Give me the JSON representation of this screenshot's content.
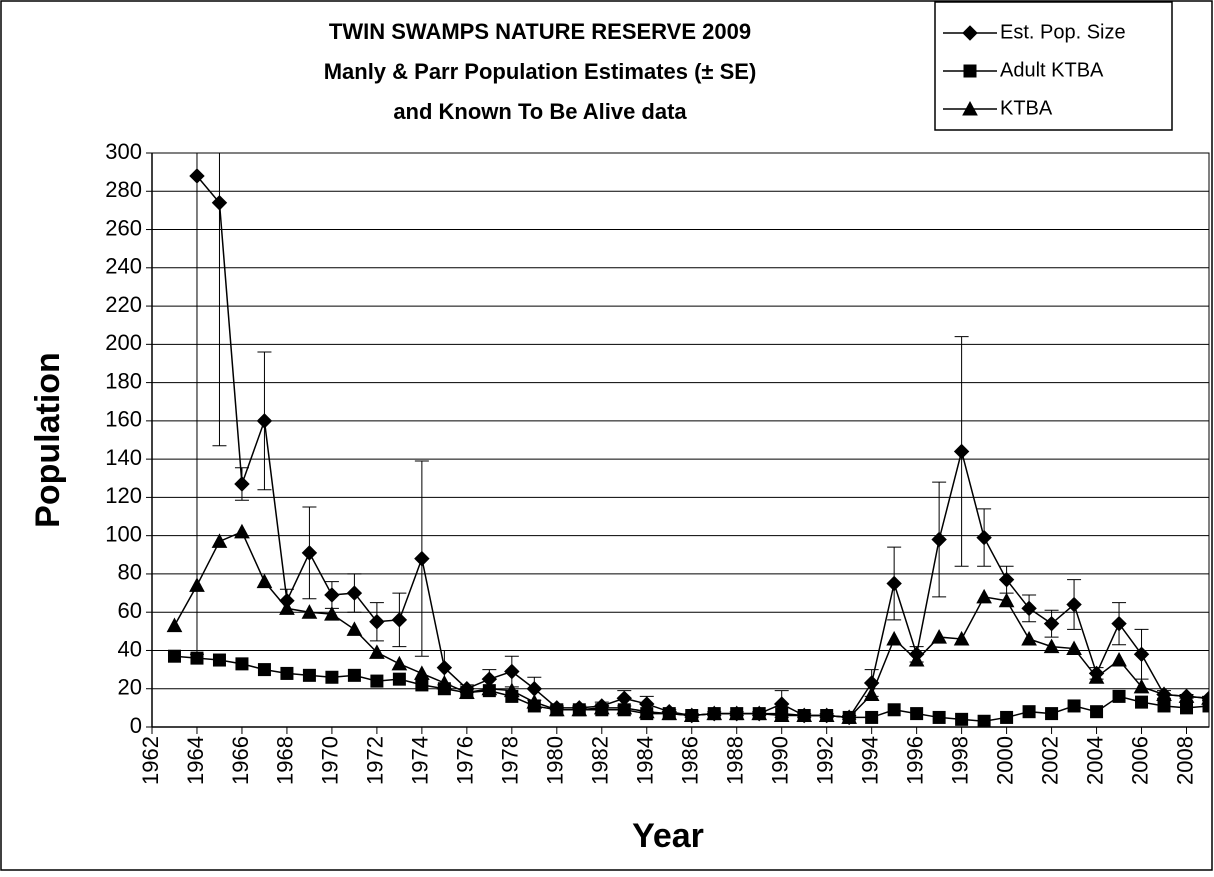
{
  "chart_data": {
    "type": "line",
    "title": [
      "TWIN SWAMPS NATURE RESERVE 2009",
      "Manly & Parr Population Estimates (± SE)",
      "and Known To Be Alive data"
    ],
    "x_label": "Year",
    "y_label": "Population",
    "x": [
      1963,
      1964,
      1965,
      1966,
      1967,
      1968,
      1969,
      1970,
      1971,
      1972,
      1973,
      1974,
      1975,
      1976,
      1977,
      1978,
      1979,
      1980,
      1981,
      1982,
      1983,
      1984,
      1985,
      1986,
      1987,
      1988,
      1989,
      1990,
      1991,
      1992,
      1993,
      1994,
      1995,
      1996,
      1997,
      1998,
      1999,
      2000,
      2001,
      2002,
      2003,
      2004,
      2005,
      2006,
      2007,
      2008,
      2009
    ],
    "series": [
      {
        "name": "Est. Pop. Size",
        "color": "#000000",
        "marker": "diamond",
        "values": [
          null,
          288,
          274,
          127,
          160,
          66,
          91,
          69,
          70,
          55,
          56,
          88,
          31,
          20,
          25,
          29,
          20,
          10,
          10,
          11,
          15,
          12,
          8,
          6,
          7,
          7,
          7,
          12,
          6,
          6,
          5,
          23,
          75,
          38,
          98,
          144,
          99,
          77,
          62,
          54,
          64,
          28,
          54,
          38,
          17,
          16,
          15
        ],
        "errors": [
          null,
          250,
          127,
          8.5,
          36,
          6,
          24,
          7,
          10,
          10,
          14,
          51,
          9,
          2,
          5,
          8,
          6,
          1,
          1,
          2,
          4,
          4,
          1,
          1,
          1,
          1,
          1,
          7,
          1,
          1,
          1,
          7,
          19,
          4,
          30,
          60,
          15,
          7,
          7,
          7,
          13,
          3,
          11,
          13,
          2,
          1,
          1
        ]
      },
      {
        "name": "Adult KTBA",
        "color": "#000000",
        "marker": "square",
        "values": [
          37,
          36,
          35,
          33,
          30,
          28,
          27,
          26,
          27,
          24,
          25,
          22,
          20,
          18,
          19,
          16,
          11,
          9,
          9,
          9,
          9,
          7,
          7,
          6,
          7,
          7,
          7,
          7,
          6,
          6,
          5,
          5,
          9,
          7,
          5,
          4,
          3,
          5,
          8,
          7,
          11,
          8,
          16,
          13,
          11,
          10,
          11
        ]
      },
      {
        "name": "KTBA",
        "color": "#000000",
        "marker": "triangle",
        "values": [
          53,
          74,
          97,
          102,
          76,
          62,
          60,
          59,
          51,
          39,
          33,
          28,
          23,
          18,
          20,
          19,
          13,
          9,
          9,
          10,
          10,
          8,
          7,
          6,
          7,
          7,
          7,
          6,
          6,
          6,
          5,
          17,
          46,
          35,
          47,
          46,
          68,
          66,
          46,
          42,
          41,
          26,
          35,
          21,
          17,
          16,
          15
        ]
      }
    ],
    "xlim": [
      1962,
      2009
    ],
    "xticks": [
      1962,
      1964,
      1966,
      1968,
      1970,
      1972,
      1974,
      1976,
      1978,
      1980,
      1982,
      1984,
      1986,
      1988,
      1990,
      1992,
      1994,
      1996,
      1998,
      2000,
      2002,
      2004,
      2006,
      2008
    ],
    "ylim": [
      0,
      300
    ],
    "yticks": [
      0,
      20,
      40,
      60,
      80,
      100,
      120,
      140,
      160,
      180,
      200,
      220,
      240,
      260,
      280,
      300
    ],
    "grid": true,
    "legend": "top-right"
  }
}
